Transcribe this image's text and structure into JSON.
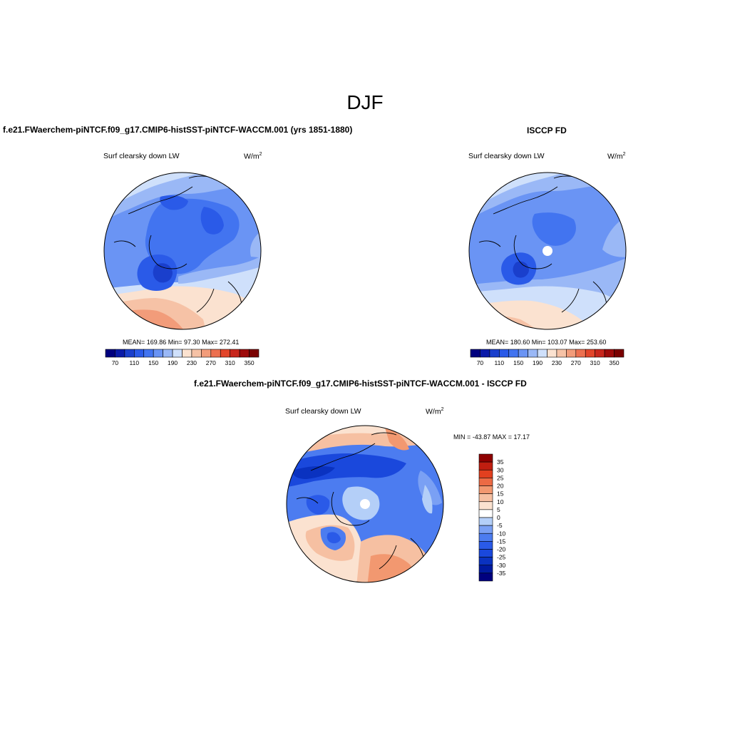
{
  "page": {
    "title": "DJF"
  },
  "panels": [
    {
      "id": "model",
      "heading": "f.e21.FWaerchem-piNTCF.f09_g17.CMIP6-histSST-piNTCF-WACCM.001 (yrs 1851-1880)",
      "subtitle": "Surf clearsky down LW",
      "units": "W/m",
      "units_sup": "2",
      "stats": "MEAN= 169.86  Min=  97.30  Max= 272.41",
      "colorbar_labels": [
        "70",
        "110",
        "150",
        "190",
        "230",
        "270",
        "310",
        "350"
      ]
    },
    {
      "id": "obs",
      "heading": "ISCCP FD",
      "subtitle": "Surf clearsky down LW",
      "units": "W/m",
      "units_sup": "2",
      "stats": "MEAN= 180.60  Min= 103.07  Max= 253.60",
      "colorbar_labels": [
        "70",
        "110",
        "150",
        "190",
        "230",
        "270",
        "310",
        "350"
      ]
    },
    {
      "id": "diff",
      "heading": "f.e21.FWaerchem-piNTCF.f09_g17.CMIP6-histSST-piNTCF-WACCM.001 - ISCCP FD",
      "subtitle": "Surf clearsky down LW",
      "units": "W/m",
      "units_sup": "2",
      "stats": "MIN = -43.87 MAX =  17.17",
      "colorbar_labels": [
        "35",
        "30",
        "25",
        "20",
        "15",
        "10",
        "5",
        "0",
        "-5",
        "-10",
        "-15",
        "-20",
        "-25",
        "-30",
        "-35"
      ]
    }
  ],
  "chart_data": [
    {
      "type": "heatmap",
      "projection": "north polar stereographic",
      "title": "f.e21.FWaerchem-piNTCF.f09_g17.CMIP6-histSST-piNTCF-WACCM.001 (yrs 1851-1880)",
      "variable": "Surf clearsky down LW",
      "units": "W/m2",
      "mean": 169.86,
      "min": 97.3,
      "max": 272.41,
      "levels": [
        70,
        90,
        110,
        130,
        150,
        170,
        190,
        210,
        230,
        250,
        270,
        290,
        310,
        330,
        350
      ],
      "colors": [
        "#00007f",
        "#0a1aa8",
        "#1a3fcc",
        "#2a5ae8",
        "#4274f0",
        "#6a94f4",
        "#9ab8f6",
        "#cfe0fb",
        "#fbe2d0",
        "#f6c2a6",
        "#f29c7a",
        "#ec7050",
        "#e2452a",
        "#c8261c",
        "#9e0a0a",
        "#7a0000"
      ]
    },
    {
      "type": "heatmap",
      "projection": "north polar stereographic",
      "title": "ISCCP FD",
      "variable": "Surf clearsky down LW",
      "units": "W/m2",
      "mean": 180.6,
      "min": 103.07,
      "max": 253.6,
      "levels": [
        70,
        90,
        110,
        130,
        150,
        170,
        190,
        210,
        230,
        250,
        270,
        290,
        310,
        330,
        350
      ],
      "colors": [
        "#00007f",
        "#0a1aa8",
        "#1a3fcc",
        "#2a5ae8",
        "#4274f0",
        "#6a94f4",
        "#9ab8f6",
        "#cfe0fb",
        "#fbe2d0",
        "#f6c2a6",
        "#f29c7a",
        "#ec7050",
        "#e2452a",
        "#c8261c",
        "#9e0a0a",
        "#7a0000"
      ]
    },
    {
      "type": "heatmap",
      "projection": "north polar stereographic",
      "title": "f.e21.FWaerchem-piNTCF.f09_g17.CMIP6-histSST-piNTCF-WACCM.001 - ISCCP FD",
      "variable": "Surf clearsky down LW",
      "units": "W/m2",
      "min": -43.87,
      "max": 17.17,
      "levels": [
        -35,
        -30,
        -25,
        -20,
        -15,
        -10,
        -5,
        0,
        5,
        10,
        15,
        20,
        25,
        30,
        35
      ],
      "colors": [
        "#00007f",
        "#001aa0",
        "#0a32c0",
        "#1a48dc",
        "#2a5ae8",
        "#4c7cf0",
        "#7aa0f4",
        "#b4cff8",
        "#ffffff",
        "#fbe2d0",
        "#f6c0a2",
        "#f29870",
        "#ec6a44",
        "#e2401f",
        "#c01e10",
        "#8e0000"
      ]
    }
  ]
}
